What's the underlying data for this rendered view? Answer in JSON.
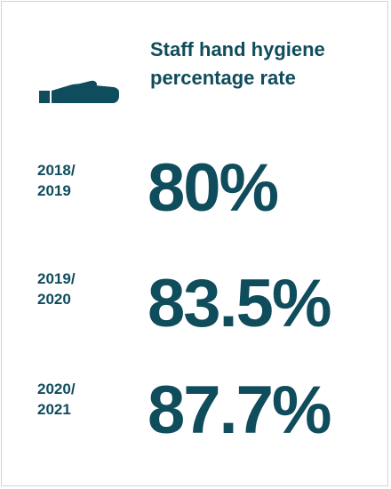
{
  "title": "Staff hand hygiene\npercentage rate",
  "icon": "hand-icon",
  "accent_color": "#0f4c5c",
  "rows": [
    {
      "year_line1": "2018/",
      "year_line2": "2019",
      "value": "80%"
    },
    {
      "year_line1": "2019/",
      "year_line2": "2020",
      "value": "83.5%"
    },
    {
      "year_line1": "2020/",
      "year_line2": "2021",
      "value": "87.7%"
    }
  ]
}
